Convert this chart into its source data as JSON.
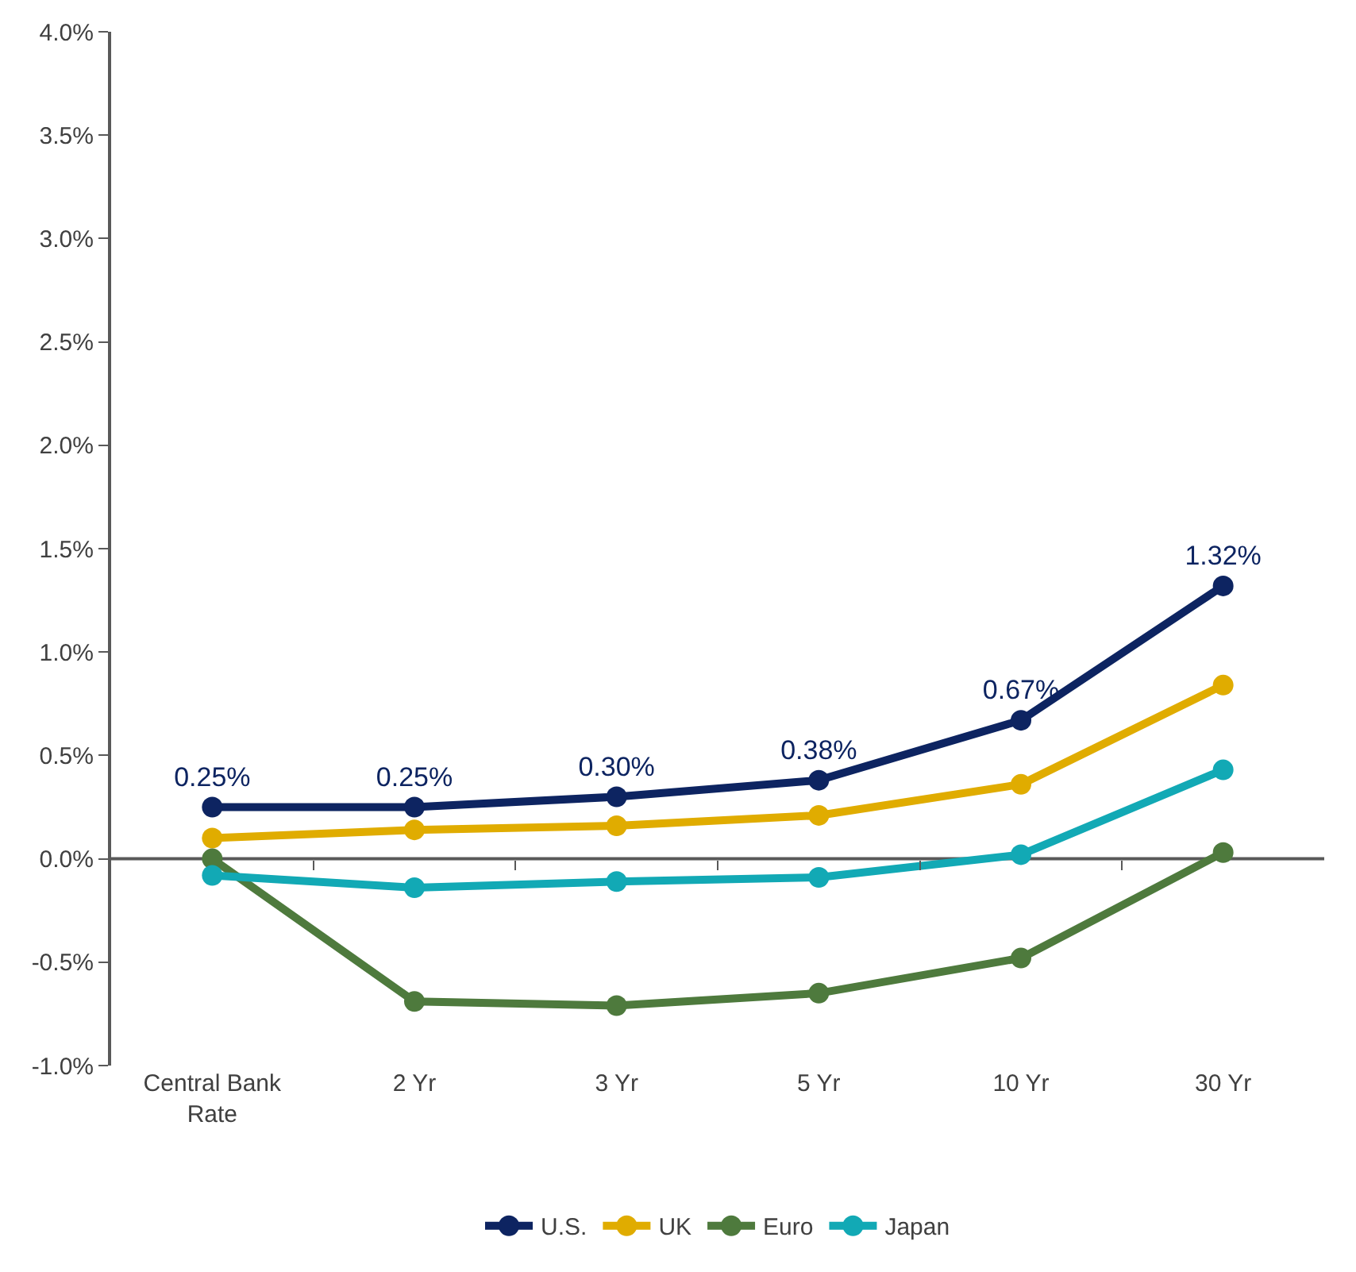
{
  "chart_data": {
    "type": "line",
    "categories": [
      "Central Bank Rate",
      "2 Yr",
      "3 Yr",
      "5 Yr",
      "10 Yr",
      "30 Yr"
    ],
    "series": [
      {
        "name": "U.S.",
        "color": "#0d2461",
        "values": [
          0.25,
          0.25,
          0.3,
          0.38,
          0.67,
          1.32
        ],
        "value_labels": [
          "0.25%",
          "0.25%",
          "0.30%",
          "0.38%",
          "0.67%",
          "1.32%"
        ]
      },
      {
        "name": "UK",
        "color": "#e0ac00",
        "values": [
          0.1,
          0.14,
          0.16,
          0.21,
          0.36,
          0.84
        ]
      },
      {
        "name": "Euro",
        "color": "#4e7a3d",
        "values": [
          0.0,
          -0.69,
          -0.71,
          -0.65,
          -0.48,
          0.03
        ]
      },
      {
        "name": "Japan",
        "color": "#12a9b5",
        "values": [
          -0.08,
          -0.14,
          -0.11,
          -0.09,
          0.02,
          0.43
        ]
      }
    ],
    "ylim": [
      -1.0,
      4.0
    ],
    "yticks": [
      {
        "value": -1.0,
        "label": "-1.0%"
      },
      {
        "value": -0.5,
        "label": "-0.5%"
      },
      {
        "value": 0.0,
        "label": "0.0%"
      },
      {
        "value": 0.5,
        "label": "0.5%"
      },
      {
        "value": 1.0,
        "label": "1.0%"
      },
      {
        "value": 1.5,
        "label": "1.5%"
      },
      {
        "value": 2.0,
        "label": "2.0%"
      },
      {
        "value": 2.5,
        "label": "2.5%"
      },
      {
        "value": 3.0,
        "label": "3.0%"
      },
      {
        "value": 3.5,
        "label": "3.5%"
      },
      {
        "value": 4.0,
        "label": "4.0%"
      }
    ],
    "ref_lines": [
      {
        "axis": "y",
        "value": 0,
        "color": "#595959",
        "line_style": "solid"
      }
    ],
    "grid": false,
    "legend": "bottom",
    "marker": "circle",
    "line_style": "solid"
  }
}
